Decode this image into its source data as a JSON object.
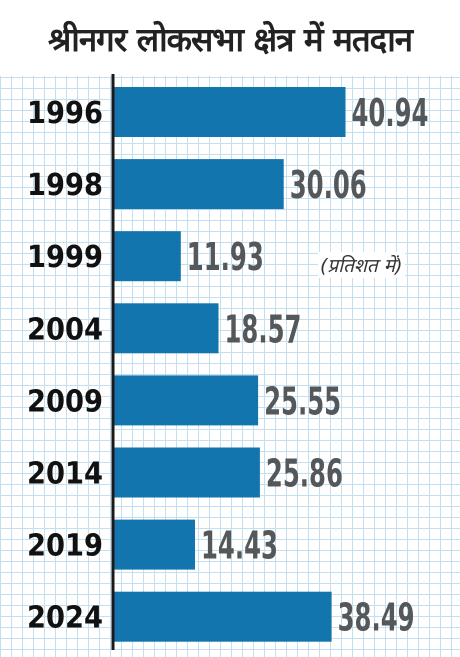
{
  "title": "श्रीनगर लोकसभा क्षेत्र में मतदान",
  "unit_note": "(प्रतिशत में)",
  "colors": {
    "bar": "#1275ae",
    "value_label": "#55585b",
    "year_label": "#111111",
    "axis": "#1a1a1a",
    "grid": "#c4e0f0"
  },
  "chart_data": {
    "type": "bar",
    "orientation": "horizontal",
    "title": "श्रीनगर लोकसभा क्षेत्र में मतदान",
    "unit": "(प्रतिशत में)",
    "categories": [
      "1996",
      "1998",
      "1999",
      "2004",
      "2009",
      "2014",
      "2019",
      "2024"
    ],
    "values": [
      40.94,
      30.06,
      11.93,
      18.57,
      25.55,
      25.86,
      14.43,
      38.49
    ],
    "value_labels": [
      "40.94",
      "30.06",
      "11.93",
      "18.57",
      "25.55",
      "25.86",
      "14.43",
      "38.49"
    ],
    "xlim": [
      0,
      45
    ],
    "grid": true,
    "legend": "none"
  }
}
